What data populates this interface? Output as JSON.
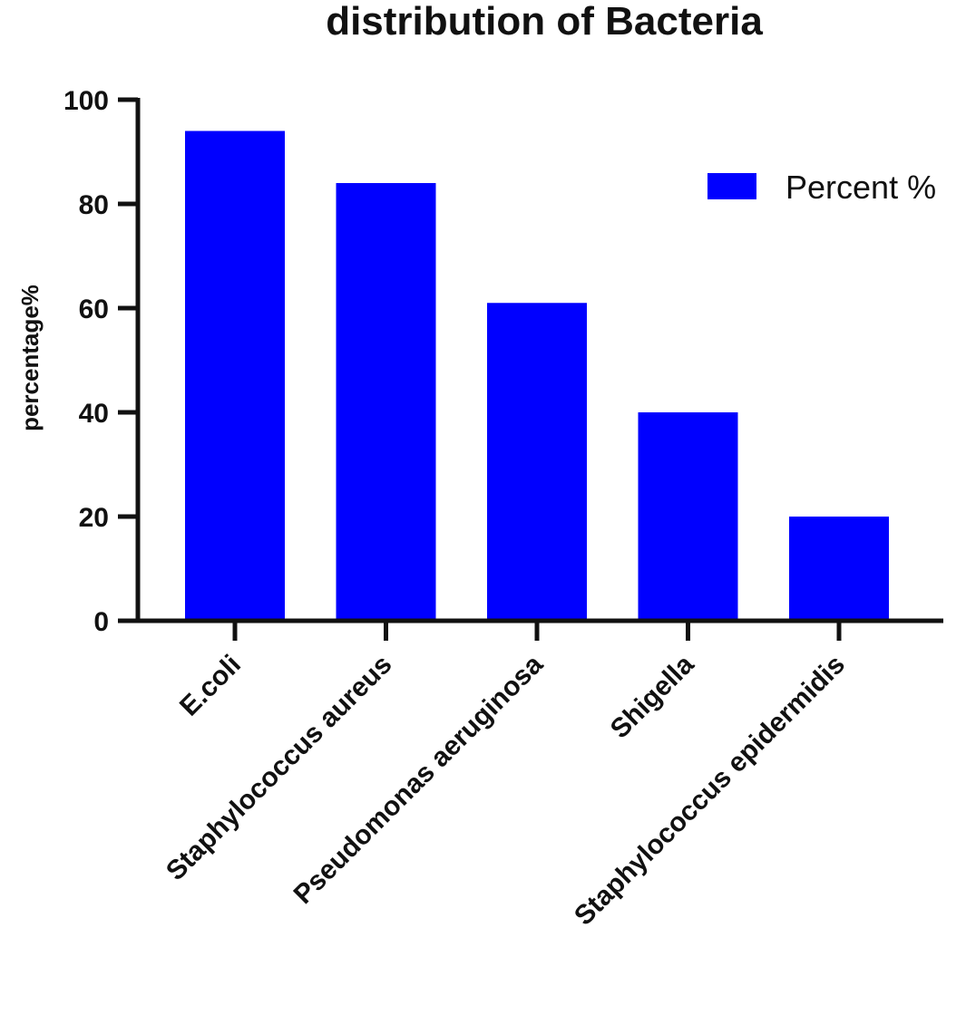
{
  "chart_data": {
    "type": "bar",
    "title": "distribution of Bacteria",
    "xlabel": "",
    "ylabel": "percentage%",
    "categories": [
      "E.coli",
      "Staphylococcus aureus",
      "Pseudomonas aeruginosa",
      "Shigella",
      "Staphylococcus epidermidis"
    ],
    "series": [
      {
        "name": "Percent %",
        "values": [
          94,
          84,
          61,
          40,
          20
        ],
        "color": "#0000ff"
      }
    ],
    "ylim": [
      0,
      100
    ],
    "yticks": [
      "0",
      "20",
      "40",
      "60",
      "80",
      "100"
    ],
    "grid": false,
    "legend_position": "top-right"
  }
}
